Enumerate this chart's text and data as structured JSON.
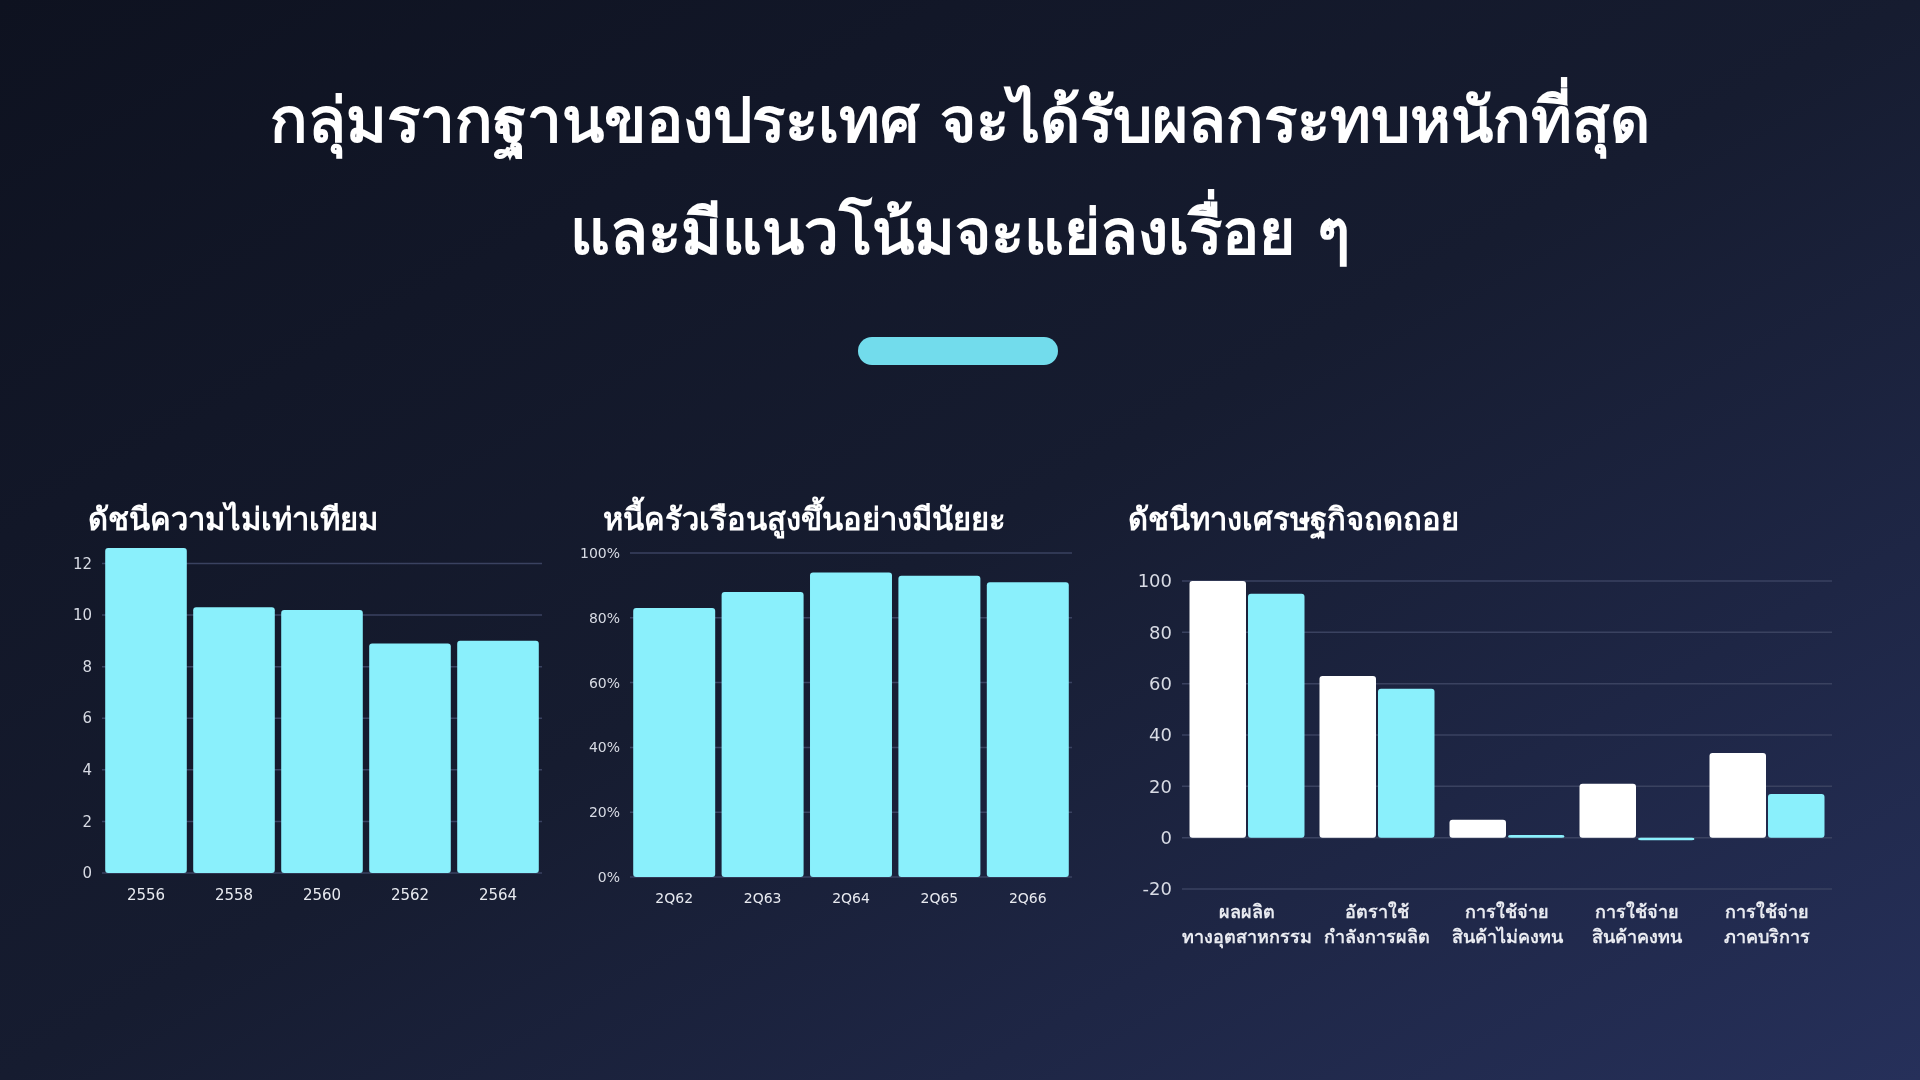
{
  "chart_data": [
    {
      "type": "other",
      "title": "กลุ่มรากฐานของประเทศ จะได้รับผลกระทบหนักที่สุด\nและมีแนวโน้มจะแย่ลงเรื่อย ๆ"
    },
    {
      "type": "bar",
      "title": "ดัชนีความไม่เท่าเทียม",
      "categories": [
        "2556",
        "2558",
        "2560",
        "2562",
        "2564"
      ],
      "values": [
        12.6,
        10.3,
        10.2,
        8.9,
        9.0
      ],
      "color": "#8af0fc",
      "ylim": [
        0,
        12.6
      ],
      "yticks": [
        0,
        2,
        4,
        6,
        8,
        10,
        12
      ],
      "grid": "y"
    },
    {
      "type": "bar",
      "title": "หนี้ครัวเรือนสูงขึ้นอย่างมีนัยยะ",
      "categories": [
        "2Q62",
        "2Q63",
        "2Q64",
        "2Q65",
        "2Q66"
      ],
      "values": [
        83,
        88,
        94,
        93,
        91
      ],
      "color": "#8af0fc",
      "ylim": [
        0,
        100
      ],
      "yticks": [
        {
          "value": 0,
          "label": "0%"
        },
        {
          "value": 20,
          "label": "20%"
        },
        {
          "value": 40,
          "label": "40%"
        },
        {
          "value": 60,
          "label": "60%"
        },
        {
          "value": 80,
          "label": "80%"
        },
        {
          "value": 100,
          "label": "100%"
        }
      ],
      "grid": "y"
    },
    {
      "type": "bar",
      "title": "ดัชนีทางเศรษฐกิจถดถอย",
      "categories": [
        "ผลผลิต\nทางอุตสาหกรรม",
        "อัตราใช้\nกำลังการผลิต",
        "การใช้จ่าย\nสินค้าไม่คงทน",
        "การใช้จ่าย\nสินค้าคงทน",
        "การใช้จ่าย\nภาคบริการ"
      ],
      "series": [
        {
          "color": "#ffffff",
          "values": [
            100,
            63,
            7,
            21,
            33
          ]
        },
        {
          "color": "#8af0fc",
          "values": [
            95,
            58,
            1,
            -1,
            17
          ]
        }
      ],
      "ylim": [
        -20,
        100
      ],
      "yticks": [
        -20,
        0,
        20,
        40,
        60,
        80,
        100
      ],
      "grid": "y"
    }
  ]
}
